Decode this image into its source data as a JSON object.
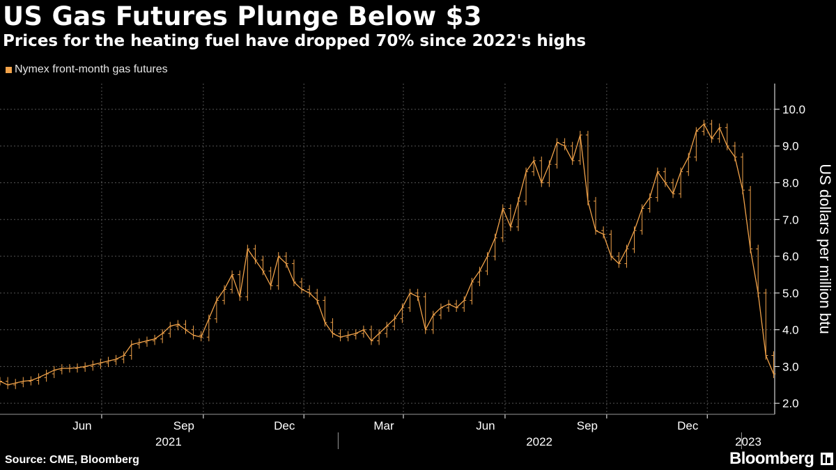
{
  "header": {
    "title": "US Gas Futures Plunge Below $3",
    "subtitle": "Prices for the heating fuel have dropped 70% since 2022's highs"
  },
  "footer": {
    "source": "Source: CME, Bloomberg",
    "brand": "Bloomberg"
  },
  "colors": {
    "background": "#000000",
    "series": "#f2a34a",
    "grid": "#555555",
    "axis": "#ffffff"
  },
  "chart_data": {
    "type": "line",
    "title": "US Gas Futures Plunge Below $3",
    "subtitle": "Prices for the heating fuel have dropped 70% since 2022's highs",
    "ylabel": "US dollars per million btu",
    "ylim": [
      1.7,
      10.7
    ],
    "yticks": [
      2.0,
      3.0,
      4.0,
      5.0,
      6.0,
      7.0,
      8.0,
      9.0,
      10.0
    ],
    "ytick_labels": [
      "2.0",
      "3.0",
      "4.0",
      "5.0",
      "6.0",
      "7.0",
      "8.0",
      "9.0",
      "10.0"
    ],
    "y_axis_position": "right",
    "grid": true,
    "legend_position": "top-left",
    "xlim": [
      "2021-03-01",
      "2023-01-31"
    ],
    "month_ticks": [
      {
        "date": "2021-06-01",
        "label": "Jun"
      },
      {
        "date": "2021-09-01",
        "label": "Sep"
      },
      {
        "date": "2021-12-01",
        "label": "Dec"
      },
      {
        "date": "2022-03-01",
        "label": "Mar"
      },
      {
        "date": "2022-06-01",
        "label": "Jun"
      },
      {
        "date": "2022-09-01",
        "label": "Sep"
      },
      {
        "date": "2022-12-01",
        "label": "Dec"
      }
    ],
    "year_labels": [
      {
        "label": "2021",
        "start": "2021-03-01",
        "end": "2021-12-31"
      },
      {
        "label": "2022",
        "start": "2022-01-01",
        "end": "2022-12-31"
      },
      {
        "label": "2023",
        "start": "2023-01-01",
        "end": "2023-01-31"
      }
    ],
    "series": [
      {
        "name": "Nymex front-month gas futures",
        "color": "#f2a34a",
        "points": [
          [
            "2021-03-01",
            2.6
          ],
          [
            "2021-03-08",
            2.5
          ],
          [
            "2021-03-15",
            2.55
          ],
          [
            "2021-03-22",
            2.6
          ],
          [
            "2021-03-29",
            2.62
          ],
          [
            "2021-04-05",
            2.7
          ],
          [
            "2021-04-12",
            2.8
          ],
          [
            "2021-04-19",
            2.9
          ],
          [
            "2021-04-26",
            2.95
          ],
          [
            "2021-05-03",
            2.95
          ],
          [
            "2021-05-10",
            2.97
          ],
          [
            "2021-05-17",
            3.0
          ],
          [
            "2021-05-24",
            3.05
          ],
          [
            "2021-05-31",
            3.1
          ],
          [
            "2021-06-07",
            3.15
          ],
          [
            "2021-06-14",
            3.2
          ],
          [
            "2021-06-21",
            3.3
          ],
          [
            "2021-06-28",
            3.6
          ],
          [
            "2021-07-05",
            3.65
          ],
          [
            "2021-07-12",
            3.7
          ],
          [
            "2021-07-19",
            3.75
          ],
          [
            "2021-07-26",
            3.9
          ],
          [
            "2021-08-02",
            4.1
          ],
          [
            "2021-08-09",
            4.15
          ],
          [
            "2021-08-16",
            4.0
          ],
          [
            "2021-08-23",
            3.85
          ],
          [
            "2021-08-30",
            3.8
          ],
          [
            "2021-09-06",
            4.3
          ],
          [
            "2021-09-13",
            4.8
          ],
          [
            "2021-09-20",
            5.1
          ],
          [
            "2021-09-27",
            5.5
          ],
          [
            "2021-10-04",
            4.9
          ],
          [
            "2021-10-11",
            6.2
          ],
          [
            "2021-10-18",
            5.9
          ],
          [
            "2021-10-25",
            5.6
          ],
          [
            "2021-11-01",
            5.2
          ],
          [
            "2021-11-08",
            6.0
          ],
          [
            "2021-11-15",
            5.8
          ],
          [
            "2021-11-22",
            5.3
          ],
          [
            "2021-11-29",
            5.1
          ],
          [
            "2021-12-06",
            5.0
          ],
          [
            "2021-12-13",
            4.8
          ],
          [
            "2021-12-20",
            4.2
          ],
          [
            "2021-12-27",
            3.9
          ],
          [
            "2022-01-03",
            3.8
          ],
          [
            "2022-01-10",
            3.85
          ],
          [
            "2022-01-17",
            3.9
          ],
          [
            "2022-01-24",
            4.0
          ],
          [
            "2022-01-31",
            3.7
          ],
          [
            "2022-02-07",
            3.9
          ],
          [
            "2022-02-14",
            4.1
          ],
          [
            "2022-02-21",
            4.3
          ],
          [
            "2022-02-28",
            4.6
          ],
          [
            "2022-03-07",
            5.0
          ],
          [
            "2022-03-14",
            4.9
          ],
          [
            "2022-03-21",
            4.0
          ],
          [
            "2022-03-28",
            4.4
          ],
          [
            "2022-04-04",
            4.6
          ],
          [
            "2022-04-11",
            4.7
          ],
          [
            "2022-04-18",
            4.6
          ],
          [
            "2022-04-25",
            4.8
          ],
          [
            "2022-05-02",
            5.3
          ],
          [
            "2022-05-09",
            5.6
          ],
          [
            "2022-05-16",
            6.0
          ],
          [
            "2022-05-23",
            6.5
          ],
          [
            "2022-05-30",
            7.3
          ],
          [
            "2022-06-06",
            6.8
          ],
          [
            "2022-06-13",
            7.5
          ],
          [
            "2022-06-20",
            8.3
          ],
          [
            "2022-06-27",
            8.6
          ],
          [
            "2022-07-04",
            8.0
          ],
          [
            "2022-07-11",
            8.5
          ],
          [
            "2022-07-18",
            9.1
          ],
          [
            "2022-07-25",
            9.0
          ],
          [
            "2022-08-01",
            8.6
          ],
          [
            "2022-08-08",
            9.3
          ],
          [
            "2022-08-15",
            7.5
          ],
          [
            "2022-08-22",
            6.7
          ],
          [
            "2022-08-29",
            6.6
          ],
          [
            "2022-09-05",
            6.0
          ],
          [
            "2022-09-12",
            5.8
          ],
          [
            "2022-09-19",
            6.2
          ],
          [
            "2022-09-26",
            6.7
          ],
          [
            "2022-10-03",
            7.3
          ],
          [
            "2022-10-10",
            7.6
          ],
          [
            "2022-10-17",
            8.3
          ],
          [
            "2022-10-24",
            8.0
          ],
          [
            "2022-10-31",
            7.7
          ],
          [
            "2022-11-07",
            8.3
          ],
          [
            "2022-11-14",
            8.7
          ],
          [
            "2022-11-21",
            9.4
          ],
          [
            "2022-11-28",
            9.6
          ],
          [
            "2022-12-05",
            9.2
          ],
          [
            "2022-12-12",
            9.5
          ],
          [
            "2022-12-19",
            9.0
          ],
          [
            "2022-12-26",
            8.7
          ],
          [
            "2023-01-02",
            7.8
          ],
          [
            "2023-01-09",
            6.2
          ],
          [
            "2023-01-16",
            5.0
          ],
          [
            "2023-01-23",
            3.3
          ],
          [
            "2023-01-30",
            2.8
          ]
        ]
      }
    ]
  }
}
